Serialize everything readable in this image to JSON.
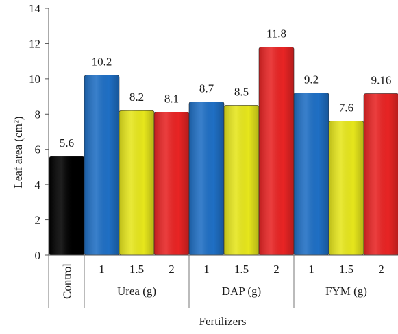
{
  "chart_data": {
    "type": "bar",
    "title": "",
    "xlabel": "Fertilizers",
    "ylabel": "Leaf area (cm²)",
    "ylim": [
      0,
      14
    ],
    "yticks": [
      0,
      2,
      4,
      6,
      8,
      10,
      12,
      14
    ],
    "grid": false,
    "legend": "none",
    "groups": [
      {
        "name": "Control",
        "vertical_label": true,
        "bars": [
          {
            "tick": "",
            "value": 5.6,
            "label": "5.6",
            "color": "#000000"
          }
        ]
      },
      {
        "name": "Urea (g)",
        "bars": [
          {
            "tick": "1",
            "value": 10.2,
            "label": "10.2",
            "color": "#1f6fc4"
          },
          {
            "tick": "1.5",
            "value": 8.2,
            "label": "8.2",
            "color": "#e6e61c"
          },
          {
            "tick": "2",
            "value": 8.1,
            "label": "8.1",
            "color": "#e82424"
          }
        ]
      },
      {
        "name": "DAP (g)",
        "bars": [
          {
            "tick": "1",
            "value": 8.7,
            "label": "8.7",
            "color": "#1f6fc4"
          },
          {
            "tick": "1.5",
            "value": 8.5,
            "label": "8.5",
            "color": "#e6e61c"
          },
          {
            "tick": "2",
            "value": 11.8,
            "label": "11.8",
            "color": "#e82424"
          }
        ]
      },
      {
        "name": "FYM (g)",
        "bars": [
          {
            "tick": "1",
            "value": 9.2,
            "label": "9.2",
            "color": "#1f6fc4"
          },
          {
            "tick": "1.5",
            "value": 7.6,
            "label": "7.6",
            "color": "#e6e61c"
          },
          {
            "tick": "2",
            "value": 9.16,
            "label": "9.16",
            "color": "#e82424"
          }
        ]
      }
    ]
  }
}
